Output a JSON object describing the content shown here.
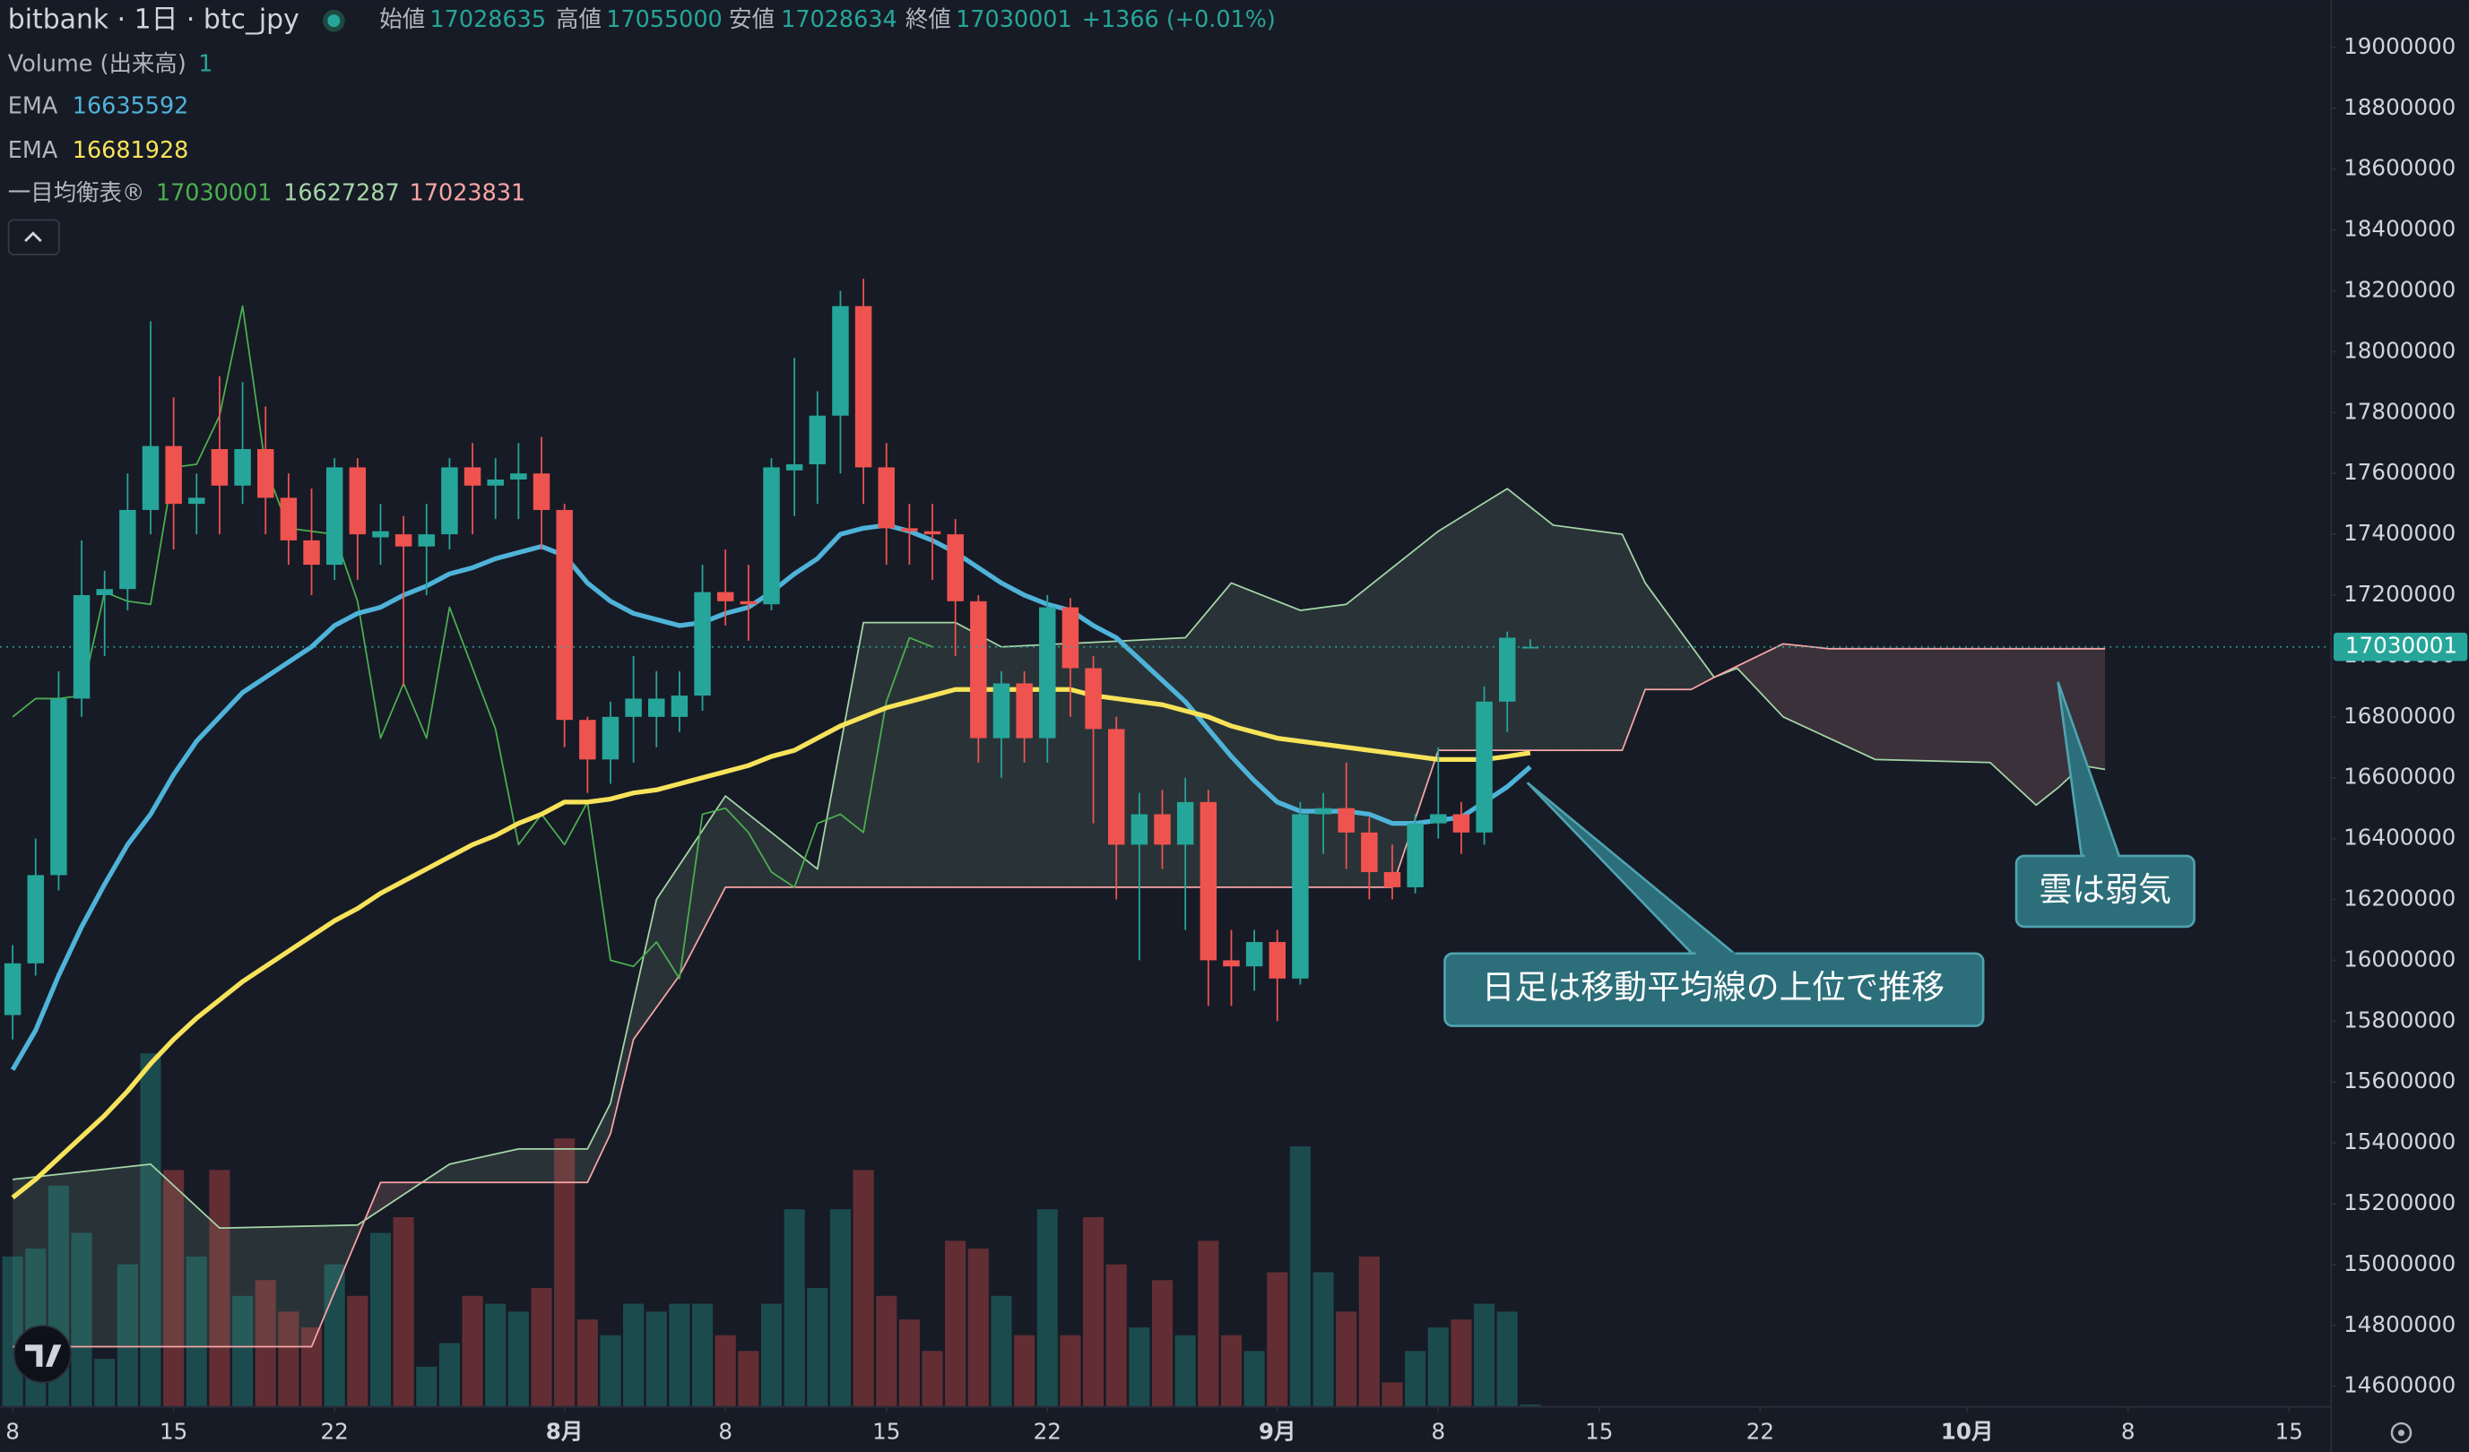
{
  "chart_data": {
    "type": "candlestick",
    "title": "bitbank · 1日 · btc_jpy",
    "ohlc_labels": [
      "始値",
      "高値",
      "安値",
      "終値"
    ],
    "change": "+1366 (+0.01%)",
    "up_color": "#26a69a",
    "down_color": "#ef5350",
    "grid": false,
    "x": [
      0,
      1,
      2,
      3,
      4,
      5,
      6,
      7,
      8,
      9,
      10,
      11,
      12,
      13,
      14,
      15,
      16,
      17,
      18,
      19,
      20,
      21,
      22,
      23,
      24,
      25,
      26,
      27,
      28,
      29,
      30,
      31,
      32,
      33,
      34,
      35,
      36,
      37,
      38,
      39,
      40,
      41,
      42,
      43,
      44,
      45,
      46,
      47,
      48,
      49,
      50,
      51,
      52,
      53,
      54,
      55,
      56,
      57,
      58,
      59,
      60,
      61,
      62,
      63,
      64,
      65,
      66
    ],
    "open": [
      15820000,
      15990000,
      16280000,
      16860000,
      17200000,
      17220000,
      17480000,
      17690000,
      17500000,
      17680000,
      17560000,
      17680000,
      17520000,
      17380000,
      17300000,
      17620000,
      17390000,
      17400000,
      17360000,
      17400000,
      17620000,
      17560000,
      17580000,
      17600000,
      17480000,
      16790000,
      16660000,
      16800000,
      16800000,
      16800000,
      16870000,
      17210000,
      17180000,
      17170000,
      17610000,
      17630000,
      17790000,
      18150000,
      17620000,
      17420000,
      17410000,
      17400000,
      17180000,
      16730000,
      16910000,
      16730000,
      17160000,
      16960000,
      16760000,
      16380000,
      16480000,
      16380000,
      16520000,
      16000000,
      15980000,
      16060000,
      15940000,
      16480000,
      16500000,
      16420000,
      16290000,
      16240000,
      16450000,
      16480000,
      16420000,
      16850000,
      17028635
    ],
    "high": [
      16050000,
      16400000,
      16950000,
      17380000,
      17280000,
      17600000,
      18100000,
      17850000,
      17600000,
      17920000,
      17900000,
      17820000,
      17600000,
      17550000,
      17650000,
      17650000,
      17500000,
      17460000,
      17500000,
      17650000,
      17700000,
      17650000,
      17700000,
      17720000,
      17500000,
      16800000,
      16850000,
      17000000,
      16950000,
      16950000,
      17300000,
      17350000,
      17300000,
      17650000,
      17980000,
      17870000,
      18200000,
      18240000,
      17700000,
      17500000,
      17500000,
      17450000,
      17200000,
      16950000,
      16950000,
      17200000,
      17190000,
      17000000,
      16800000,
      16550000,
      16560000,
      16600000,
      16560000,
      16100000,
      16100000,
      16100000,
      16520000,
      16550000,
      16650000,
      16470000,
      16380000,
      16480000,
      16700000,
      16520000,
      16900000,
      17080000,
      17055000
    ],
    "low": [
      15740000,
      15950000,
      16230000,
      16800000,
      17000000,
      17150000,
      17400000,
      17350000,
      17400000,
      17400000,
      17500000,
      17400000,
      17300000,
      17200000,
      17250000,
      17250000,
      17300000,
      16900000,
      17200000,
      17350000,
      17400000,
      17450000,
      17450000,
      17350000,
      16700000,
      16550000,
      16580000,
      16650000,
      16700000,
      16750000,
      16820000,
      17100000,
      17050000,
      17150000,
      17460000,
      17500000,
      17600000,
      17500000,
      17300000,
      17300000,
      17250000,
      17000000,
      16650000,
      16600000,
      16650000,
      16650000,
      16800000,
      16450000,
      16200000,
      16000000,
      16300000,
      16100000,
      15850000,
      15850000,
      15900000,
      15800000,
      15920000,
      16350000,
      16300000,
      16200000,
      16200000,
      16220000,
      16400000,
      16350000,
      16380000,
      16750000,
      17028634
    ],
    "close": [
      15990000,
      16280000,
      16860000,
      17200000,
      17220000,
      17480000,
      17690000,
      17500000,
      17520000,
      17560000,
      17680000,
      17520000,
      17380000,
      17300000,
      17620000,
      17400000,
      17410000,
      17360000,
      17400000,
      17620000,
      17560000,
      17580000,
      17600000,
      17480000,
      16790000,
      16660000,
      16800000,
      16860000,
      16860000,
      16870000,
      17210000,
      17180000,
      17170000,
      17620000,
      17630000,
      17790000,
      18150000,
      17620000,
      17420000,
      17410000,
      17400000,
      17180000,
      16730000,
      16910000,
      16730000,
      17160000,
      16960000,
      16760000,
      16380000,
      16480000,
      16380000,
      16520000,
      16000000,
      15980000,
      16060000,
      15940000,
      16480000,
      16500000,
      16420000,
      16290000,
      16240000,
      16450000,
      16480000,
      16420000,
      16850000,
      17060000,
      17030001
    ],
    "volume": {
      "name": "Volume (出来高)",
      "values": [
        95,
        100,
        140,
        110,
        30,
        90,
        224,
        150,
        95,
        150,
        70,
        80,
        60,
        50,
        90,
        70,
        110,
        120,
        25,
        40,
        70,
        65,
        60,
        75,
        170,
        55,
        45,
        65,
        60,
        65,
        65,
        45,
        35,
        65,
        125,
        75,
        125,
        150,
        70,
        55,
        35,
        105,
        100,
        70,
        45,
        125,
        45,
        120,
        90,
        50,
        80,
        45,
        105,
        45,
        35,
        85,
        165,
        85,
        60,
        95,
        15,
        35,
        50,
        55,
        65,
        60,
        1
      ]
    },
    "ema": [
      {
        "name": "EMA",
        "color": "#4fb3d9",
        "values": [
          15640000,
          15770000,
          15950000,
          16110000,
          16250000,
          16380000,
          16480000,
          16610000,
          16720000,
          16800000,
          16880000,
          16930000,
          16980000,
          17030000,
          17100000,
          17140000,
          17160000,
          17200000,
          17230000,
          17270000,
          17290000,
          17320000,
          17340000,
          17360000,
          17330000,
          17240000,
          17180000,
          17140000,
          17120000,
          17100000,
          17110000,
          17140000,
          17160000,
          17210000,
          17270000,
          17320000,
          17400000,
          17420000,
          17430000,
          17410000,
          17380000,
          17340000,
          17290000,
          17240000,
          17200000,
          17170000,
          17150000,
          17100000,
          17060000,
          16990000,
          16920000,
          16850000,
          16760000,
          16670000,
          16590000,
          16520000,
          16490000,
          16490000,
          16490000,
          16480000,
          16450000,
          16450000,
          16460000,
          16470000,
          16520000,
          16570000,
          16635592
        ]
      },
      {
        "name": "EMA",
        "color": "#f7e35a",
        "values": [
          15220000,
          15280000,
          15350000,
          15420000,
          15490000,
          15570000,
          15660000,
          15740000,
          15810000,
          15870000,
          15930000,
          15980000,
          16030000,
          16080000,
          16130000,
          16170000,
          16220000,
          16260000,
          16300000,
          16340000,
          16380000,
          16410000,
          16450000,
          16480000,
          16520000,
          16520000,
          16530000,
          16550000,
          16560000,
          16580000,
          16600000,
          16620000,
          16640000,
          16670000,
          16690000,
          16730000,
          16770000,
          16800000,
          16830000,
          16850000,
          16870000,
          16890000,
          16890000,
          16890000,
          16890000,
          16890000,
          16890000,
          16870000,
          16860000,
          16850000,
          16840000,
          16820000,
          16800000,
          16770000,
          16750000,
          16730000,
          16720000,
          16710000,
          16700000,
          16690000,
          16680000,
          16670000,
          16660000,
          16660000,
          16660000,
          16670000,
          16681928
        ]
      }
    ],
    "ichimoku": {
      "name": "一目均衡表®",
      "lagging": {
        "color": "#4caf50",
        "x": [
          0,
          1,
          2,
          3,
          4,
          5,
          6,
          7,
          8,
          9,
          10,
          11,
          12,
          13,
          14,
          15,
          16,
          17,
          18,
          19,
          20,
          21,
          22,
          23,
          24,
          25,
          26,
          27,
          28,
          29,
          30,
          31,
          32,
          33,
          34,
          35,
          36,
          37,
          38,
          39,
          40
        ],
        "values": [
          16800000,
          16860000,
          16860000,
          16870000,
          17210000,
          17180000,
          17170000,
          17620000,
          17630000,
          17790000,
          18150000,
          17620000,
          17420000,
          17410000,
          17400000,
          17180000,
          16730000,
          16910000,
          16730000,
          17160000,
          16960000,
          16760000,
          16380000,
          16480000,
          16380000,
          16520000,
          16000000,
          15980000,
          16060000,
          15940000,
          16480000,
          16500000,
          16420000,
          16290000,
          16240000,
          16450000,
          16480000,
          16420000,
          16850000,
          17060000,
          17030001
        ]
      },
      "span_a": {
        "color": "#a5d6a7",
        "x": [
          0,
          6,
          9,
          15,
          19,
          22,
          25,
          26,
          28,
          31,
          34,
          35,
          37,
          41,
          43,
          51,
          53,
          56,
          58,
          60,
          62,
          65,
          67,
          70,
          71,
          74,
          75,
          77,
          81,
          86,
          88,
          89,
          90,
          91
        ],
        "values": [
          15280000,
          15330000,
          15120000,
          15130000,
          15330000,
          15380000,
          15380000,
          15530000,
          16200000,
          16540000,
          16360000,
          16300000,
          17110000,
          17110000,
          17030000,
          17060000,
          17240000,
          17150000,
          17170000,
          17290000,
          17410000,
          17550000,
          17430000,
          17400000,
          17240000,
          16930000,
          16960000,
          16800000,
          16660000,
          16650000,
          16510000,
          16570000,
          16640000,
          16627287
        ]
      },
      "span_b": {
        "color": "#f8a5a5",
        "x": [
          0,
          13,
          16,
          25,
          26,
          27,
          29,
          31,
          60,
          62,
          70,
          71,
          73,
          74,
          77,
          79,
          91
        ],
        "values": [
          14730000,
          14730000,
          15270000,
          15270000,
          15430000,
          15740000,
          15950000,
          16240000,
          16240000,
          16690000,
          16690000,
          16890000,
          16890000,
          16930000,
          17040000,
          17023831,
          17023831
        ]
      }
    },
    "ylim": [
      14535000,
      19155000
    ],
    "yticks": [
      14600000,
      14800000,
      15000000,
      15200000,
      15400000,
      15600000,
      15800000,
      16000000,
      16200000,
      16400000,
      16600000,
      16800000,
      17000000,
      17200000,
      17400000,
      17600000,
      17800000,
      18000000,
      18200000,
      18400000,
      18600000,
      18800000,
      19000000
    ],
    "xlim": [
      -0.55,
      100.8
    ],
    "xticks": [
      {
        "value": 0,
        "label": "8"
      },
      {
        "value": 7,
        "label": "15"
      },
      {
        "value": 14,
        "label": "22"
      },
      {
        "value": 24,
        "label": "8月"
      },
      {
        "value": 31,
        "label": "8"
      },
      {
        "value": 38,
        "label": "15"
      },
      {
        "value": 45,
        "label": "22"
      },
      {
        "value": 55,
        "label": "9月"
      },
      {
        "value": 62,
        "label": "8"
      },
      {
        "value": 69,
        "label": "15"
      },
      {
        "value": 76,
        "label": "22"
      },
      {
        "value": 85,
        "label": "10月"
      },
      {
        "value": 92,
        "label": "8"
      },
      {
        "value": 99,
        "label": "15"
      }
    ],
    "annotations": [
      "日足は移動平均線の上位で推移",
      "雲は弱気"
    ]
  }
}
